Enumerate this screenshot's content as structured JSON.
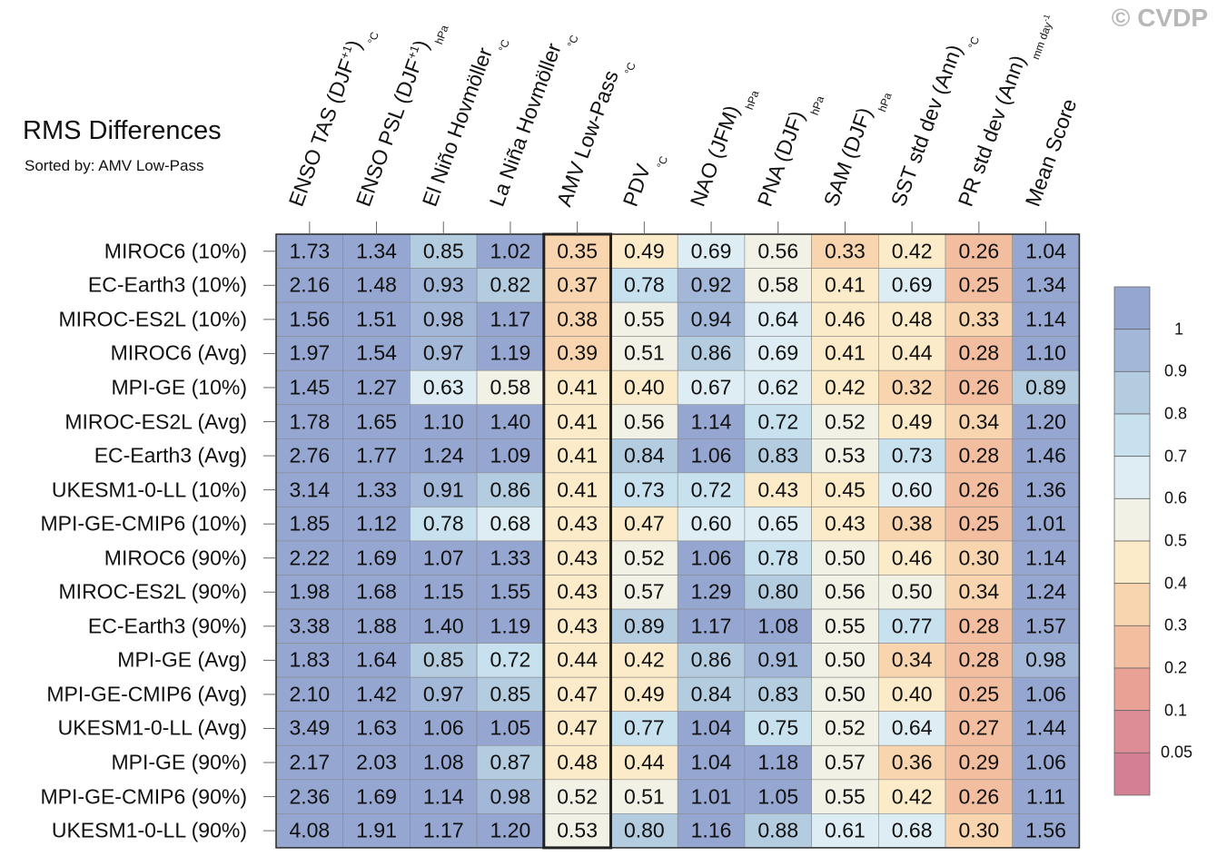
{
  "watermark": "© CVDP",
  "title": "RMS Differences",
  "subtitle": "Sorted by: AMV Low-Pass",
  "chart_data": {
    "type": "heatmap",
    "highlight_column": "AMV Low-Pass",
    "columns": [
      {
        "label": "ENSO TAS (DJF",
        "sup": "+1",
        "close": ")",
        "unit": "°C"
      },
      {
        "label": "ENSO PSL (DJF",
        "sup": "+1",
        "close": ")",
        "unit": "hPa"
      },
      {
        "label": "El Niño Hovmöller",
        "unit": "°C"
      },
      {
        "label": "La Niña Hovmöller",
        "unit": "°C"
      },
      {
        "label": "AMV Low-Pass",
        "unit": "°C"
      },
      {
        "label": "PDV",
        "unit": "°C"
      },
      {
        "label": "NAO (JFM)",
        "unit": "hPa"
      },
      {
        "label": "PNA (DJF)",
        "unit": "hPa"
      },
      {
        "label": "SAM (DJF)",
        "unit": "hPa"
      },
      {
        "label": "SST std dev (Ann)",
        "unit": "°C"
      },
      {
        "label": "PR std dev (Ann)",
        "unit": "mm day",
        "unit_sup": "-1"
      },
      {
        "label": "Mean Score",
        "unit": ""
      }
    ],
    "rows": [
      {
        "label": "MIROC6 (10%)",
        "values": [
          "1.73",
          "1.34",
          "0.85",
          "1.02",
          "0.35",
          "0.49",
          "0.69",
          "0.56",
          "0.33",
          "0.42",
          "0.26",
          "1.04"
        ]
      },
      {
        "label": "EC-Earth3 (10%)",
        "values": [
          "2.16",
          "1.48",
          "0.93",
          "0.82",
          "0.37",
          "0.78",
          "0.92",
          "0.58",
          "0.41",
          "0.69",
          "0.25",
          "1.34"
        ]
      },
      {
        "label": "MIROC-ES2L (10%)",
        "values": [
          "1.56",
          "1.51",
          "0.98",
          "1.17",
          "0.38",
          "0.55",
          "0.94",
          "0.64",
          "0.46",
          "0.48",
          "0.33",
          "1.14"
        ]
      },
      {
        "label": "MIROC6 (Avg)",
        "values": [
          "1.97",
          "1.54",
          "0.97",
          "1.19",
          "0.39",
          "0.51",
          "0.86",
          "0.69",
          "0.41",
          "0.44",
          "0.28",
          "1.10"
        ]
      },
      {
        "label": "MPI-GE (10%)",
        "values": [
          "1.45",
          "1.27",
          "0.63",
          "0.58",
          "0.41",
          "0.40",
          "0.67",
          "0.62",
          "0.42",
          "0.32",
          "0.26",
          "0.89"
        ]
      },
      {
        "label": "MIROC-ES2L (Avg)",
        "values": [
          "1.78",
          "1.65",
          "1.10",
          "1.40",
          "0.41",
          "0.56",
          "1.14",
          "0.72",
          "0.52",
          "0.49",
          "0.34",
          "1.20"
        ]
      },
      {
        "label": "EC-Earth3 (Avg)",
        "values": [
          "2.76",
          "1.77",
          "1.24",
          "1.09",
          "0.41",
          "0.84",
          "1.06",
          "0.83",
          "0.53",
          "0.73",
          "0.28",
          "1.46"
        ]
      },
      {
        "label": "UKESM1-0-LL (10%)",
        "values": [
          "3.14",
          "1.33",
          "0.91",
          "0.86",
          "0.41",
          "0.73",
          "0.72",
          "0.43",
          "0.45",
          "0.60",
          "0.26",
          "1.36"
        ]
      },
      {
        "label": "MPI-GE-CMIP6 (10%)",
        "values": [
          "1.85",
          "1.12",
          "0.78",
          "0.68",
          "0.43",
          "0.47",
          "0.60",
          "0.65",
          "0.43",
          "0.38",
          "0.25",
          "1.01"
        ]
      },
      {
        "label": "MIROC6 (90%)",
        "values": [
          "2.22",
          "1.69",
          "1.07",
          "1.33",
          "0.43",
          "0.52",
          "1.06",
          "0.78",
          "0.50",
          "0.46",
          "0.30",
          "1.14"
        ]
      },
      {
        "label": "MIROC-ES2L (90%)",
        "values": [
          "1.98",
          "1.68",
          "1.15",
          "1.55",
          "0.43",
          "0.57",
          "1.29",
          "0.80",
          "0.56",
          "0.50",
          "0.34",
          "1.24"
        ]
      },
      {
        "label": "EC-Earth3 (90%)",
        "values": [
          "3.38",
          "1.88",
          "1.40",
          "1.19",
          "0.43",
          "0.89",
          "1.17",
          "1.08",
          "0.55",
          "0.77",
          "0.28",
          "1.57"
        ]
      },
      {
        "label": "MPI-GE (Avg)",
        "values": [
          "1.83",
          "1.64",
          "0.85",
          "0.72",
          "0.44",
          "0.42",
          "0.86",
          "0.91",
          "0.50",
          "0.34",
          "0.28",
          "0.98"
        ]
      },
      {
        "label": "MPI-GE-CMIP6 (Avg)",
        "values": [
          "2.10",
          "1.42",
          "0.97",
          "0.85",
          "0.47",
          "0.49",
          "0.84",
          "0.83",
          "0.50",
          "0.40",
          "0.25",
          "1.06"
        ]
      },
      {
        "label": "UKESM1-0-LL (Avg)",
        "values": [
          "3.49",
          "1.63",
          "1.06",
          "1.05",
          "0.47",
          "0.77",
          "1.04",
          "0.75",
          "0.52",
          "0.64",
          "0.27",
          "1.44"
        ]
      },
      {
        "label": "MPI-GE (90%)",
        "values": [
          "2.17",
          "2.03",
          "1.08",
          "0.87",
          "0.48",
          "0.44",
          "1.04",
          "1.18",
          "0.57",
          "0.36",
          "0.29",
          "1.06"
        ]
      },
      {
        "label": "MPI-GE-CMIP6 (90%)",
        "values": [
          "2.36",
          "1.69",
          "1.14",
          "0.98",
          "0.52",
          "0.51",
          "1.01",
          "1.05",
          "0.55",
          "0.42",
          "0.26",
          "1.11"
        ]
      },
      {
        "label": "UKESM1-0-LL (90%)",
        "values": [
          "4.08",
          "1.91",
          "1.17",
          "1.20",
          "0.53",
          "0.80",
          "1.16",
          "0.88",
          "0.61",
          "0.68",
          "0.30",
          "1.56"
        ]
      }
    ],
    "colorbar": {
      "labels": [
        "1",
        "0.9",
        "0.8",
        "0.7",
        "0.6",
        "0.5",
        "0.4",
        "0.3",
        "0.2",
        "0.1",
        "0.05"
      ],
      "bounds": [
        0.05,
        0.1,
        0.2,
        0.3,
        0.4,
        0.5,
        0.6,
        0.7,
        0.8,
        0.9,
        1
      ],
      "colors": [
        "#d47f94",
        "#dd8d95",
        "#e9a196",
        "#f3bd9f",
        "#f8d5ae",
        "#fbebc8",
        "#f1f1e6",
        "#ddedf3",
        "#c8e1ef",
        "#b4ccdf",
        "#a3b8d8",
        "#95a6d1"
      ]
    }
  }
}
